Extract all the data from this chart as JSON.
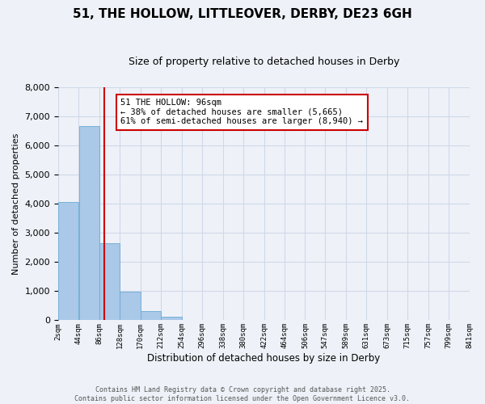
{
  "title1": "51, THE HOLLOW, LITTLEOVER, DERBY, DE23 6GH",
  "title2": "Size of property relative to detached houses in Derby",
  "xlabel": "Distribution of detached houses by size in Derby",
  "ylabel": "Number of detached properties",
  "bin_labels": [
    "2sqm",
    "44sqm",
    "86sqm",
    "128sqm",
    "170sqm",
    "212sqm",
    "254sqm",
    "296sqm",
    "338sqm",
    "380sqm",
    "422sqm",
    "464sqm",
    "506sqm",
    "547sqm",
    "589sqm",
    "631sqm",
    "673sqm",
    "715sqm",
    "757sqm",
    "799sqm",
    "841sqm"
  ],
  "bin_edges": [
    2,
    44,
    86,
    128,
    170,
    212,
    254,
    296,
    338,
    380,
    422,
    464,
    506,
    547,
    589,
    631,
    673,
    715,
    757,
    799,
    841
  ],
  "bar_values": [
    4050,
    6650,
    2650,
    980,
    320,
    110,
    0,
    0,
    0,
    0,
    0,
    0,
    0,
    0,
    0,
    0,
    0,
    0,
    0,
    0
  ],
  "bar_color": "#aac8e8",
  "bar_edge_color": "#6aaad4",
  "vline_x": 96,
  "vline_color": "#cc0000",
  "ylim": [
    0,
    8000
  ],
  "yticks": [
    0,
    1000,
    2000,
    3000,
    4000,
    5000,
    6000,
    7000,
    8000
  ],
  "annotation_box_text_line1": "51 THE HOLLOW: 96sqm",
  "annotation_box_text_line2": "← 38% of detached houses are smaller (5,665)",
  "annotation_box_text_line3": "61% of semi-detached houses are larger (8,940) →",
  "footer1": "Contains HM Land Registry data © Crown copyright and database right 2025.",
  "footer2": "Contains public sector information licensed under the Open Government Licence v3.0.",
  "bg_color": "#eef2f8",
  "grid_color": "#d0d8e8"
}
